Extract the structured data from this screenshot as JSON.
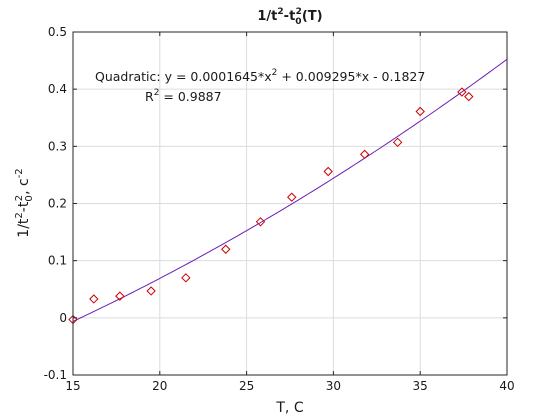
{
  "chart_data": {
    "type": "scatter",
    "title": "1/t2-t02(T)",
    "title_parts": {
      "base": "1/t",
      "sup1": "2",
      "mid": "-t",
      "sub": "0",
      "sup2": "2",
      "end": "(T)"
    },
    "xlabel": "T, C",
    "ylabel": "1/t2-t02, c-2",
    "ylabel_parts": {
      "base": "1/t",
      "sup1": "2",
      "mid": "-t",
      "sub": "0",
      "sup2": "2",
      "tail": ", c",
      "sup3": "-2"
    },
    "xlim": [
      15,
      40
    ],
    "ylim": [
      -0.1,
      0.5
    ],
    "xticks": [
      15,
      20,
      25,
      30,
      35,
      40
    ],
    "yticks": [
      -0.1,
      0,
      0.1,
      0.2,
      0.3,
      0.4,
      0.5
    ],
    "xtick_labels": [
      "15",
      "20",
      "25",
      "30",
      "35",
      "40"
    ],
    "ytick_labels": [
      "-0.1",
      "0",
      "0.1",
      "0.2",
      "0.3",
      "0.4",
      "0.5"
    ],
    "grid": true,
    "series": [
      {
        "kind": "markers",
        "marker": "diamond-open",
        "color": "#cc0000",
        "x": [
          15,
          16.2,
          17.7,
          19.5,
          21.5,
          23.8,
          25.8,
          27.6,
          29.7,
          31.8,
          33.7,
          35.0,
          37.4,
          37.8
        ],
        "y": [
          -0.003,
          0.033,
          0.038,
          0.047,
          0.07,
          0.12,
          0.168,
          0.211,
          0.256,
          0.286,
          0.307,
          0.361,
          0.395,
          0.387
        ]
      },
      {
        "kind": "fit-line",
        "color": "#6a1fb5",
        "fit": {
          "a": 0.0001645,
          "b": 0.009295,
          "c": -0.1827
        },
        "x_range": [
          15,
          40
        ]
      }
    ],
    "annotation": {
      "equation_prefix": "Quadratic:  y = 0.0001645*x",
      "equation_sup": "2",
      "equation_suffix": " + 0.009295*x - 0.1827",
      "r2_prefix": "R",
      "r2_sup": "2",
      "r2_suffix": " = 0.9887"
    }
  }
}
